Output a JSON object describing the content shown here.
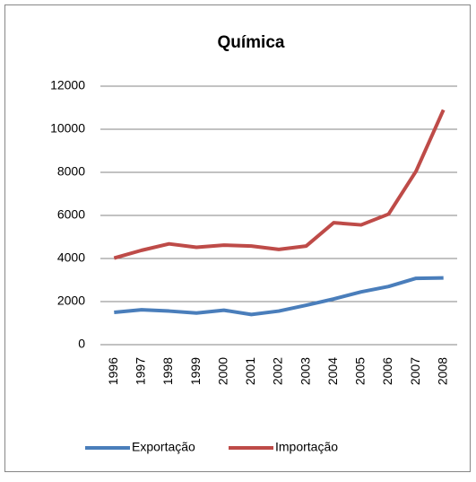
{
  "chart_data": {
    "type": "line",
    "title": "Química",
    "categories": [
      "1996",
      "1997",
      "1998",
      "1999",
      "2000",
      "2001",
      "2002",
      "2003",
      "2004",
      "2005",
      "2006",
      "2007",
      "2008"
    ],
    "series": [
      {
        "name": "Exportação",
        "color": "#4a7ebb",
        "values": [
          1500,
          1620,
          1560,
          1470,
          1600,
          1400,
          1560,
          1830,
          2120,
          2450,
          2700,
          3080,
          3100
        ]
      },
      {
        "name": "Importação",
        "color": "#be4b48",
        "values": [
          4020,
          4380,
          4680,
          4520,
          4620,
          4580,
          4420,
          4580,
          5660,
          5560,
          6060,
          8050,
          10900
        ]
      }
    ],
    "ylim": [
      0,
      12000
    ],
    "yticks": [
      0,
      2000,
      4000,
      6000,
      8000,
      10000,
      12000
    ],
    "grid": true,
    "legend": "bottom"
  }
}
